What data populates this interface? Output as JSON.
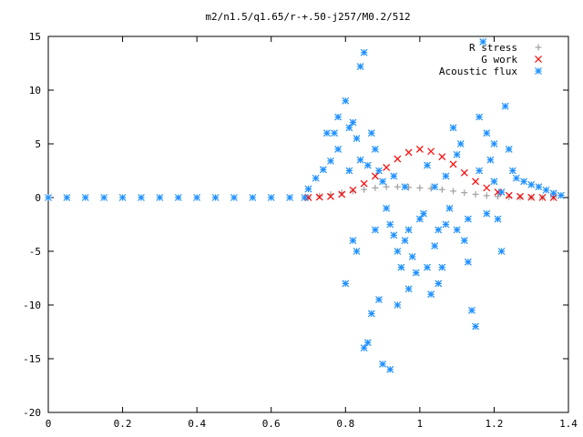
{
  "chart_data": {
    "type": "scatter",
    "title": "m2/n1.5/q1.65/r-+.50-j257/M0.2/512",
    "xlabel": "",
    "ylabel": "",
    "xlim": [
      0,
      1.4
    ],
    "ylim": [
      -20,
      15
    ],
    "x_ticks": [
      "0",
      "0.2",
      "0.4",
      "0.6",
      "0.8",
      "1",
      "1.2",
      "1.4"
    ],
    "y_ticks": [
      "15",
      "10",
      "5",
      "0",
      "-5",
      "-10",
      "-15",
      "-20"
    ],
    "grid": false,
    "legend_position": "top-right",
    "series": [
      {
        "name": "R stress",
        "marker": "plus",
        "color": "#a0a0a0",
        "points": [
          [
            0.7,
            0.0
          ],
          [
            0.73,
            0.15
          ],
          [
            0.76,
            0.3
          ],
          [
            0.79,
            0.45
          ],
          [
            0.82,
            0.6
          ],
          [
            0.85,
            0.75
          ],
          [
            0.88,
            0.9
          ],
          [
            0.91,
            1.0
          ],
          [
            0.94,
            1.0
          ],
          [
            0.97,
            0.95
          ],
          [
            1.0,
            0.9
          ],
          [
            1.03,
            0.85
          ],
          [
            1.06,
            0.75
          ],
          [
            1.09,
            0.6
          ],
          [
            1.12,
            0.45
          ],
          [
            1.15,
            0.3
          ],
          [
            1.18,
            0.18
          ],
          [
            1.21,
            0.1
          ],
          [
            1.24,
            0.05
          ],
          [
            1.27,
            0.02
          ],
          [
            1.3,
            0.01
          ],
          [
            1.33,
            0.0
          ],
          [
            1.36,
            0.0
          ]
        ]
      },
      {
        "name": "G work",
        "marker": "cross",
        "color": "#ff0000",
        "points": [
          [
            0.7,
            0.0
          ],
          [
            0.73,
            0.05
          ],
          [
            0.76,
            0.1
          ],
          [
            0.79,
            0.3
          ],
          [
            0.82,
            0.7
          ],
          [
            0.85,
            1.3
          ],
          [
            0.88,
            2.0
          ],
          [
            0.91,
            2.8
          ],
          [
            0.94,
            3.6
          ],
          [
            0.97,
            4.2
          ],
          [
            1.0,
            4.5
          ],
          [
            1.03,
            4.3
          ],
          [
            1.06,
            3.8
          ],
          [
            1.09,
            3.1
          ],
          [
            1.12,
            2.3
          ],
          [
            1.15,
            1.5
          ],
          [
            1.18,
            0.9
          ],
          [
            1.21,
            0.5
          ],
          [
            1.24,
            0.2
          ],
          [
            1.27,
            0.1
          ],
          [
            1.3,
            0.03
          ],
          [
            1.33,
            0.01
          ],
          [
            1.36,
            0.0
          ]
        ]
      },
      {
        "name": "Acoustic flux",
        "marker": "star",
        "color": "#1e90ff",
        "points": [
          [
            0.0,
            0.0
          ],
          [
            0.05,
            0.0
          ],
          [
            0.1,
            0.0
          ],
          [
            0.15,
            0.0
          ],
          [
            0.2,
            0.0
          ],
          [
            0.25,
            0.0
          ],
          [
            0.3,
            0.0
          ],
          [
            0.35,
            0.0
          ],
          [
            0.4,
            0.0
          ],
          [
            0.45,
            0.0
          ],
          [
            0.5,
            0.0
          ],
          [
            0.55,
            0.0
          ],
          [
            0.6,
            0.0
          ],
          [
            0.65,
            0.0
          ],
          [
            0.69,
            0.0
          ],
          [
            0.7,
            0.8
          ],
          [
            0.72,
            1.8
          ],
          [
            0.74,
            2.6
          ],
          [
            0.76,
            3.4
          ],
          [
            0.77,
            6.0
          ],
          [
            0.78,
            4.5
          ],
          [
            0.8,
            9.0
          ],
          [
            0.81,
            6.5
          ],
          [
            0.82,
            7.0
          ],
          [
            0.83,
            5.5
          ],
          [
            0.84,
            12.2
          ],
          [
            0.85,
            13.5
          ],
          [
            0.86,
            3.0
          ],
          [
            0.87,
            6.0
          ],
          [
            0.88,
            4.5
          ],
          [
            0.89,
            2.5
          ],
          [
            0.9,
            1.5
          ],
          [
            0.91,
            -1.0
          ],
          [
            0.92,
            -2.5
          ],
          [
            0.93,
            -3.5
          ],
          [
            0.94,
            -5.0
          ],
          [
            0.95,
            -6.5
          ],
          [
            0.96,
            -4.0
          ],
          [
            0.97,
            -3.0
          ],
          [
            0.98,
            -5.5
          ],
          [
            0.99,
            -7.0
          ],
          [
            1.0,
            -2.0
          ],
          [
            1.01,
            -1.5
          ],
          [
            1.02,
            -6.5
          ],
          [
            1.03,
            -9.0
          ],
          [
            1.04,
            -4.5
          ],
          [
            1.05,
            -3.0
          ],
          [
            1.06,
            -6.5
          ],
          [
            1.07,
            -2.5
          ],
          [
            1.08,
            -1.0
          ],
          [
            1.09,
            6.5
          ],
          [
            1.1,
            4.0
          ],
          [
            1.11,
            5.0
          ],
          [
            1.12,
            -4.0
          ],
          [
            1.13,
            -6.0
          ],
          [
            1.14,
            -10.5
          ],
          [
            1.15,
            -12.0
          ],
          [
            1.16,
            7.5
          ],
          [
            1.17,
            14.5
          ],
          [
            1.18,
            6.0
          ],
          [
            1.19,
            3.5
          ],
          [
            1.2,
            1.5
          ],
          [
            1.21,
            -2.0
          ],
          [
            1.22,
            -5.0
          ],
          [
            1.23,
            8.5
          ],
          [
            1.24,
            4.5
          ],
          [
            1.25,
            2.5
          ],
          [
            1.26,
            1.8
          ],
          [
            1.28,
            1.5
          ],
          [
            1.3,
            1.2
          ],
          [
            1.32,
            1.0
          ],
          [
            1.34,
            0.7
          ],
          [
            1.36,
            0.4
          ],
          [
            1.38,
            0.2
          ],
          [
            0.8,
            -8.0
          ],
          [
            0.82,
            -4.0
          ],
          [
            0.83,
            -5.0
          ],
          [
            0.85,
            -14.0
          ],
          [
            0.86,
            -13.5
          ],
          [
            0.87,
            -10.8
          ],
          [
            0.89,
            -9.5
          ],
          [
            0.9,
            -15.5
          ],
          [
            0.92,
            -16.0
          ],
          [
            0.94,
            -10.0
          ],
          [
            0.97,
            -8.5
          ],
          [
            1.05,
            -8.0
          ],
          [
            0.75,
            6.0
          ],
          [
            0.78,
            7.5
          ],
          [
            0.81,
            2.5
          ],
          [
            0.84,
            3.5
          ],
          [
            0.88,
            -3.0
          ],
          [
            0.93,
            2.0
          ],
          [
            0.96,
            1.0
          ],
          [
            1.02,
            3.0
          ],
          [
            1.04,
            1.0
          ],
          [
            1.07,
            2.0
          ],
          [
            1.1,
            -3.0
          ],
          [
            1.13,
            -2.0
          ],
          [
            1.16,
            2.5
          ],
          [
            1.18,
            -1.5
          ],
          [
            1.2,
            5.0
          ],
          [
            1.22,
            0.5
          ]
        ]
      }
    ]
  }
}
